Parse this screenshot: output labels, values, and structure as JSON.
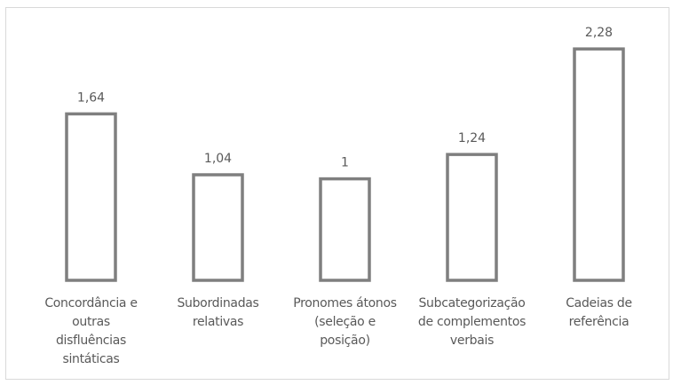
{
  "chart_data": {
    "type": "bar",
    "categories": [
      "Concordância e outras disfluências sintáticas",
      "Subordinadas relativas",
      "Pronomes átonos (seleção e posição)",
      "Subcategorização de complementos verbais",
      "Cadeias de referência"
    ],
    "values": [
      1.64,
      1.04,
      1,
      1.24,
      2.28
    ],
    "data_labels": [
      "1,64",
      "1,04",
      "1",
      "1,24",
      "2,28"
    ],
    "category_lines": [
      [
        "Concordância e",
        "outras",
        "disfluências",
        "sintáticas"
      ],
      [
        "Subordinadas",
        "relativas"
      ],
      [
        "Pronomes átonos",
        "(seleção e",
        "posição)"
      ],
      [
        "Subcategorização",
        "de complementos",
        "verbais"
      ],
      [
        "Cadeias de",
        "referência"
      ]
    ],
    "title": "",
    "xlabel": "",
    "ylabel": "",
    "ylim": [
      0,
      2.5
    ],
    "grid": false,
    "legend": "none",
    "colors": {
      "bar_fill": "#ffffff",
      "bar_stroke": "#7f7f7f",
      "text": "#595959"
    }
  }
}
